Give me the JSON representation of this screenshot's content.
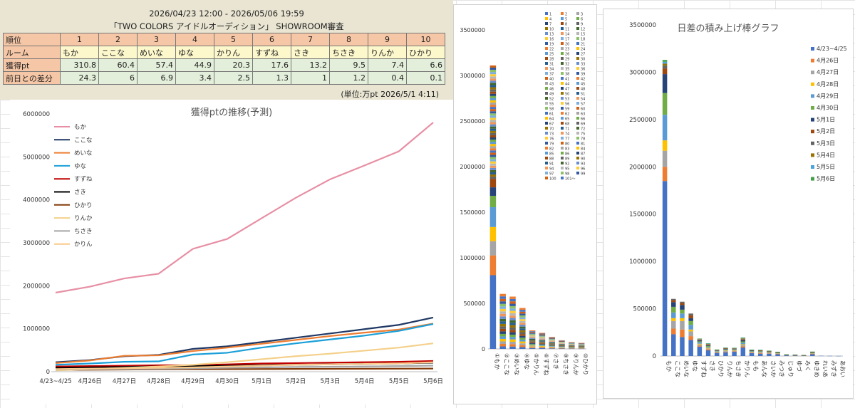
{
  "summary": {
    "period": "2026/04/23 12:00 - 2026/05/06 19:59",
    "title": "「TWO COLORS アイドルオーディション」 SHOWROOM審査",
    "row_labels": [
      "順位",
      "ルーム",
      "獲得pt",
      "前日との差分"
    ],
    "ranks": [
      "1",
      "2",
      "3",
      "4",
      "5",
      "6",
      "7",
      "8",
      "9",
      "10"
    ],
    "rooms": [
      "もか",
      "ここな",
      "めいな",
      "ゆな",
      "かりん",
      "すずね",
      "さき",
      "ちさき",
      "りんか",
      "ひかり"
    ],
    "points": [
      "310.8",
      "60.4",
      "57.4",
      "44.9",
      "20.3",
      "17.6",
      "13.2",
      "9.5",
      "7.4",
      "6.6"
    ],
    "diffs": [
      "24.3",
      "6",
      "6.9",
      "3.4",
      "2.5",
      "1.3",
      "1",
      "1.2",
      "0.4",
      "0.1"
    ],
    "unit": "(単位:万pt  2026/5/1 4:11)"
  },
  "chart_data": [
    {
      "type": "line",
      "title": "獲得ptの推移(予測)",
      "x": [
        "4/23~4/25",
        "4月26日",
        "4月27日",
        "4月28日",
        "4月29日",
        "4月30日",
        "5月1日",
        "5月2日",
        "5月3日",
        "5月4日",
        "5月5日",
        "5月6日"
      ],
      "ylim": [
        0,
        6000000
      ],
      "yticks": [
        "0",
        "1000000",
        "2000000",
        "3000000",
        "4000000",
        "5000000",
        "6000000"
      ],
      "grid": false,
      "legend": "top-left",
      "series": [
        {
          "name": "もか",
          "color": "#e78fa4",
          "values": [
            1840000,
            1980000,
            2170000,
            2280000,
            2860000,
            3090000,
            3570000,
            4050000,
            4480000,
            4800000,
            5130000,
            5800000
          ]
        },
        {
          "name": "ここな",
          "color": "#1f3864",
          "values": [
            220000,
            270000,
            360000,
            390000,
            530000,
            590000,
            690000,
            790000,
            890000,
            990000,
            1090000,
            1260000
          ]
        },
        {
          "name": "めいな",
          "color": "#ed7d31",
          "values": [
            200000,
            260000,
            370000,
            380000,
            480000,
            560000,
            650000,
            740000,
            830000,
            910000,
            980000,
            1120000
          ]
        },
        {
          "name": "ゆな",
          "color": "#1a9fd8",
          "values": [
            160000,
            190000,
            230000,
            240000,
            400000,
            440000,
            560000,
            660000,
            750000,
            840000,
            950000,
            1110000
          ]
        },
        {
          "name": "すずね",
          "color": "#c00000",
          "values": [
            120000,
            130000,
            140000,
            150000,
            150000,
            170000,
            190000,
            200000,
            210000,
            220000,
            230000,
            250000
          ]
        },
        {
          "name": "さき",
          "color": "#000000",
          "values": [
            90000,
            100000,
            110000,
            120000,
            130000,
            140000,
            150000,
            160000,
            170000,
            180000,
            190000,
            210000
          ]
        },
        {
          "name": "ひかり",
          "color": "#843c0c",
          "values": [
            40000,
            45000,
            50000,
            55000,
            58000,
            60000,
            62000,
            64000,
            66000,
            68000,
            70000,
            72000
          ]
        },
        {
          "name": "りんか",
          "color": "#f4d08a",
          "values": [
            30000,
            60000,
            90000,
            120000,
            160000,
            220000,
            290000,
            360000,
            420000,
            490000,
            560000,
            660000
          ]
        },
        {
          "name": "ちさき",
          "color": "#a5a5a5",
          "values": [
            50000,
            55000,
            60000,
            70000,
            80000,
            90000,
            100000,
            110000,
            115000,
            120000,
            130000,
            140000
          ]
        },
        {
          "name": "かりん",
          "color": "#fbc98b",
          "values": [
            60000,
            70000,
            80000,
            90000,
            100000,
            120000,
            140000,
            160000,
            170000,
            180000,
            190000,
            220000
          ]
        }
      ]
    },
    {
      "type": "bar",
      "stacked": true,
      "title": "",
      "categories": [
        "①もか",
        "②ここな",
        "③めいな",
        "④ゆな",
        "⑤かりん",
        "⑥すずね",
        "⑦さき",
        "⑧ちさき",
        "⑨りんか",
        "⑩ひかり"
      ],
      "totals": [
        3110000,
        604000,
        574000,
        449000,
        203000,
        176000,
        132000,
        95000,
        74000,
        66000
      ],
      "ylim": [
        0,
        3500000
      ],
      "yticks": [
        "0",
        "500000",
        "1000000",
        "1500000",
        "2000000",
        "2500000",
        "3000000",
        "3500000"
      ],
      "legend": "right",
      "legend_labels": [
        "1",
        "2",
        "3",
        "4",
        "5",
        "6",
        "7",
        "8",
        "9",
        "10",
        "11",
        "12",
        "13",
        "14",
        "15",
        "16",
        "17",
        "18",
        "19",
        "20",
        "21",
        "22",
        "23",
        "24",
        "25",
        "26",
        "27",
        "28",
        "29",
        "30",
        "31",
        "32",
        "33",
        "34",
        "35",
        "36",
        "37",
        "38",
        "39",
        "40",
        "41",
        "42",
        "43",
        "44",
        "45",
        "46",
        "47",
        "48",
        "49",
        "50",
        "51",
        "52",
        "53",
        "54",
        "55",
        "56",
        "57",
        "58",
        "59",
        "60",
        "61",
        "62",
        "63",
        "64",
        "65",
        "66",
        "67",
        "68",
        "69",
        "70",
        "71",
        "72",
        "73",
        "74",
        "75",
        "76",
        "77",
        "78",
        "79",
        "80",
        "81",
        "82",
        "83",
        "84",
        "85",
        "86",
        "87",
        "88",
        "89",
        "90",
        "91",
        "92",
        "93",
        "94",
        "95",
        "96",
        "97",
        "98",
        "99",
        "100",
        "101～"
      ]
    },
    {
      "type": "bar",
      "stacked": true,
      "title": "日差の積み上げ棒グラフ",
      "categories": [
        "もか",
        "ここな",
        "めいな",
        "ゆな",
        "すずね",
        "さき",
        "ひかり",
        "りんか",
        "ちさき",
        "かりん",
        "もも",
        "あんな",
        "さいか",
        "みつき",
        "じゅり",
        "ゆづ",
        "みく",
        "ゆきめ",
        "れいあ",
        "みずき",
        "あおい"
      ],
      "ylim": [
        0,
        3500000
      ],
      "yticks": [
        "0",
        "500000",
        "1000000",
        "1500000",
        "2000000",
        "2500000",
        "3000000",
        "3500000"
      ],
      "legend": "right",
      "series": [
        {
          "name": "4/23~4/25",
          "color": "#4472c4",
          "values": [
            1850000,
            230000,
            200000,
            170000,
            100000,
            60000,
            35000,
            40000,
            45000,
            90000,
            30000,
            25000,
            25000,
            20000,
            10000,
            8000,
            5000,
            20000,
            3000,
            2000,
            1000
          ]
        },
        {
          "name": "4月26日",
          "color": "#ed7d31",
          "values": [
            150000,
            60000,
            80000,
            40000,
            10000,
            10000,
            4000,
            6000,
            5000,
            12000,
            5000,
            6000,
            4000,
            3000,
            1000,
            1000,
            1000,
            3000,
            0,
            0,
            0
          ]
        },
        {
          "name": "4月27日",
          "color": "#a5a5a5",
          "values": [
            170000,
            80000,
            90000,
            50000,
            12000,
            10000,
            4000,
            7000,
            6000,
            14000,
            6000,
            6000,
            5000,
            4000,
            1000,
            1000,
            1000,
            4000,
            0,
            0,
            0
          ]
        },
        {
          "name": "4月28日",
          "color": "#ffc000",
          "values": [
            110000,
            30000,
            30000,
            20000,
            8000,
            8000,
            3000,
            5000,
            4000,
            8000,
            3000,
            4000,
            3000,
            2000,
            1000,
            1000,
            500,
            2000,
            0,
            0,
            0
          ]
        },
        {
          "name": "4月29日",
          "color": "#5b9bd5",
          "values": [
            270000,
            60000,
            50000,
            50000,
            15000,
            10000,
            4000,
            6000,
            5000,
            16000,
            5000,
            5000,
            4000,
            3000,
            1000,
            1000,
            500,
            3000,
            0,
            0,
            0
          ]
        },
        {
          "name": "4月30日",
          "color": "#70ad47",
          "values": [
            230000,
            60000,
            40000,
            40000,
            10000,
            8000,
            4000,
            6000,
            5000,
            14000,
            4000,
            4000,
            3000,
            3000,
            1000,
            500,
            500,
            3000,
            0,
            0,
            0
          ]
        },
        {
          "name": "5月1日",
          "color": "#264478",
          "values": [
            200000,
            50000,
            50000,
            30000,
            10000,
            6000,
            4000,
            5000,
            4000,
            12000,
            4000,
            4000,
            3000,
            2000,
            1000,
            500,
            500,
            2000,
            0,
            0,
            0
          ]
        },
        {
          "name": "5月2日",
          "color": "#9e480e",
          "values": [
            60000,
            20000,
            20000,
            30000,
            6000,
            5000,
            3000,
            4000,
            3000,
            8000,
            3000,
            3000,
            2000,
            2000,
            500,
            500,
            500,
            2000,
            0,
            0,
            0
          ]
        },
        {
          "name": "5月3日",
          "color": "#636363",
          "values": [
            30000,
            14000,
            14000,
            19000,
            4000,
            5000,
            2000,
            3000,
            3000,
            6000,
            2000,
            3000,
            2000,
            2000,
            500,
            500,
            500,
            2000,
            0,
            0,
            0
          ]
        },
        {
          "name": "5月4日",
          "color": "#997300",
          "values": [
            20000,
            0,
            0,
            0,
            4000,
            5000,
            2000,
            3000,
            3000,
            6000,
            2000,
            2000,
            2000,
            2000,
            500,
            500,
            500,
            2000,
            0,
            0,
            0
          ]
        },
        {
          "name": "5月5日",
          "color": "#4da4d9",
          "values": [
            20000,
            0,
            0,
            0,
            3000,
            4000,
            2000,
            2000,
            2000,
            5000,
            2000,
            2000,
            2000,
            1000,
            500,
            500,
            500,
            2000,
            0,
            0,
            0
          ]
        },
        {
          "name": "5月6日",
          "color": "#43a047",
          "values": [
            20000,
            0,
            0,
            0,
            3000,
            4000,
            2000,
            2000,
            2000,
            5000,
            2000,
            2000,
            2000,
            1000,
            500,
            500,
            500,
            2000,
            0,
            0,
            0
          ]
        }
      ]
    }
  ]
}
